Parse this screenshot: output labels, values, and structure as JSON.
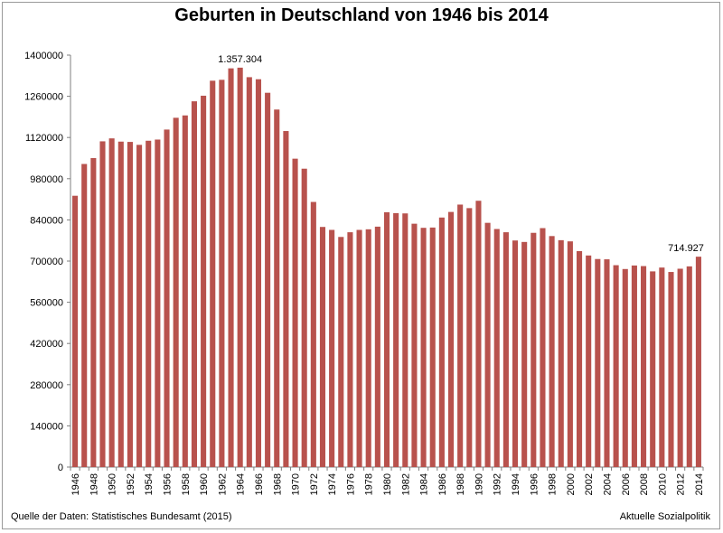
{
  "chart_data": {
    "type": "bar",
    "title": "Geburten in Deutschland von 1946 bis 2014",
    "xlabel": "",
    "ylabel": "",
    "ylim": [
      0,
      1400000
    ],
    "ytick_labels": [
      "0",
      "140000",
      "280000",
      "420000",
      "560000",
      "700000",
      "840000",
      "980000",
      "1120000",
      "1260000",
      "1400000"
    ],
    "xtick_labels": [
      "1946",
      "1948",
      "1950",
      "1952",
      "1954",
      "1956",
      "1958",
      "1960",
      "1962",
      "1964",
      "1966",
      "1968",
      "1970",
      "1972",
      "1974",
      "1976",
      "1978",
      "1980",
      "1982",
      "1984",
      "1986",
      "1988",
      "1990",
      "1992",
      "1994",
      "1996",
      "1998",
      "2000",
      "2002",
      "2004",
      "2006",
      "2008",
      "2010",
      "2012",
      "2014"
    ],
    "categories": [
      "1946",
      "1947",
      "1948",
      "1949",
      "1950",
      "1951",
      "1952",
      "1953",
      "1954",
      "1955",
      "1956",
      "1957",
      "1958",
      "1959",
      "1960",
      "1961",
      "1962",
      "1963",
      "1964",
      "1965",
      "1966",
      "1967",
      "1968",
      "1969",
      "1970",
      "1971",
      "1972",
      "1973",
      "1974",
      "1975",
      "1976",
      "1977",
      "1978",
      "1979",
      "1980",
      "1981",
      "1982",
      "1983",
      "1984",
      "1985",
      "1986",
      "1987",
      "1988",
      "1989",
      "1990",
      "1991",
      "1992",
      "1993",
      "1994",
      "1995",
      "1996",
      "1997",
      "1998",
      "1999",
      "2000",
      "2001",
      "2002",
      "2003",
      "2004",
      "2005",
      "2006",
      "2007",
      "2008",
      "2009",
      "2010",
      "2011",
      "2012",
      "2013",
      "2014"
    ],
    "values": [
      922000,
      1030000,
      1050000,
      1107000,
      1117000,
      1106000,
      1105000,
      1095000,
      1109000,
      1113000,
      1147000,
      1187000,
      1195000,
      1243000,
      1262000,
      1313000,
      1316000,
      1355000,
      1357304,
      1325000,
      1318000,
      1272000,
      1215000,
      1142000,
      1048000,
      1014000,
      901000,
      816000,
      806000,
      782000,
      798000,
      806000,
      808000,
      817000,
      866000,
      863000,
      862000,
      827000,
      813000,
      814000,
      848000,
      867000,
      892000,
      880000,
      905000,
      830000,
      809000,
      798000,
      770000,
      765000,
      796000,
      812000,
      785000,
      771000,
      767000,
      734000,
      719000,
      707000,
      706000,
      686000,
      673000,
      685000,
      683000,
      665000,
      678000,
      663000,
      674000,
      682000,
      714927
    ],
    "bar_color": "#b8524d",
    "annotations": [
      {
        "label": "1.357.304",
        "category": "1964"
      },
      {
        "label": "714.927",
        "category": "2014"
      }
    ],
    "source_left": "Quelle der Daten: Statistisches Bundesamt (2015)",
    "source_right": "Aktuelle Sozialpolitik",
    "grid": false,
    "legend": "none"
  }
}
